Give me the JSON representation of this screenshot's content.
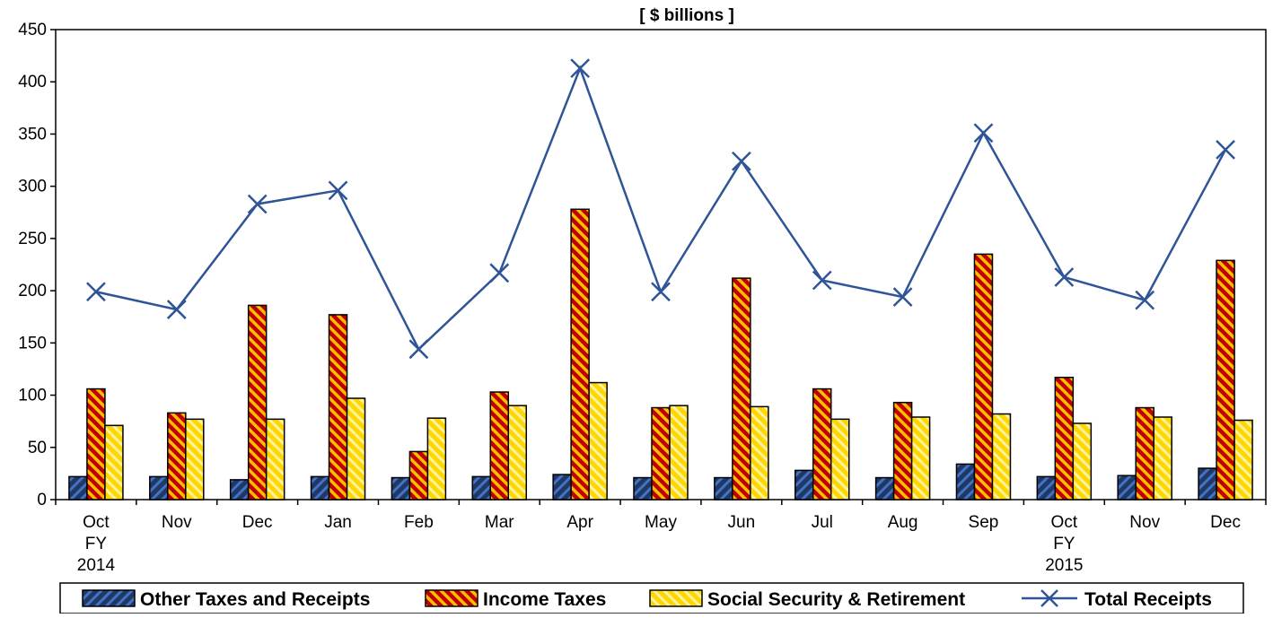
{
  "chart_data": {
    "type": "bar",
    "title": "[ $ billions  ]",
    "categories": [
      [
        "Oct",
        "FY",
        "2014"
      ],
      [
        "Nov"
      ],
      [
        "Dec"
      ],
      [
        "Jan"
      ],
      [
        "Feb"
      ],
      [
        "Mar"
      ],
      [
        "Apr"
      ],
      [
        "May"
      ],
      [
        "Jun"
      ],
      [
        "Jul"
      ],
      [
        "Aug"
      ],
      [
        "Sep"
      ],
      [
        "Oct",
        "FY",
        "2015"
      ],
      [
        "Nov"
      ],
      [
        "Dec"
      ]
    ],
    "ylim": [
      0,
      450
    ],
    "yticks": [
      0,
      50,
      100,
      150,
      200,
      250,
      300,
      350,
      400,
      450
    ],
    "grid": false,
    "legend_position": "bottom",
    "series": [
      {
        "name": "Other Taxes and Receipts",
        "kind": "bar",
        "color": "#1f3864",
        "stripe": "#4472c4",
        "values": [
          22,
          22,
          19,
          22,
          21,
          22,
          24,
          21,
          21,
          28,
          21,
          34,
          22,
          23,
          30
        ]
      },
      {
        "name": "Income Taxes",
        "kind": "bar",
        "color": "#c00000",
        "stripe": "#ffc000",
        "values": [
          106,
          83,
          186,
          177,
          46,
          103,
          278,
          88,
          212,
          106,
          93,
          235,
          117,
          88,
          229
        ]
      },
      {
        "name": "Social Security & Retirement",
        "kind": "bar",
        "color": "#ffd700",
        "stripe": "#ffef7a",
        "values": [
          71,
          77,
          77,
          97,
          78,
          90,
          112,
          90,
          89,
          77,
          79,
          82,
          73,
          79,
          76
        ]
      },
      {
        "name": "Total Receipts",
        "kind": "line",
        "color": "#2f5597",
        "marker": "x",
        "values": [
          199,
          182,
          283,
          296,
          144,
          217,
          413,
          199,
          324,
          210,
          194,
          351,
          213,
          191,
          335
        ]
      }
    ]
  }
}
